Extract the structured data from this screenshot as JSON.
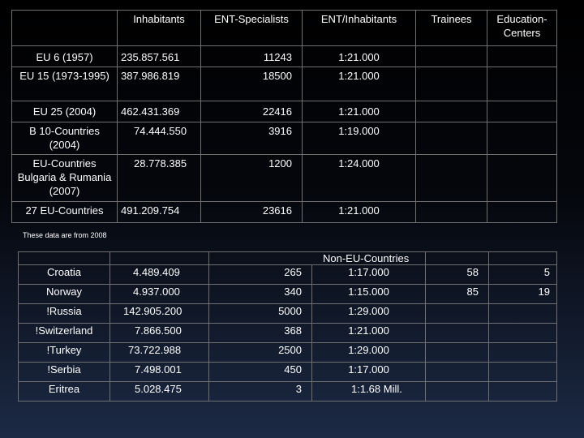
{
  "table1": {
    "headers": [
      "",
      "Inhabitants",
      "ENT-Specialists",
      "ENT/Inhabitants",
      "Trainees",
      "Education-Centers"
    ],
    "rows": [
      {
        "country": "EU 6 (1957)",
        "inhabitants": "235.857.561",
        "ent": "11243",
        "ratio": "1:21.000"
      },
      {
        "country": "EU 15 (1973-1995)",
        "inhabitants": "387.986.819",
        "ent": "18500",
        "ratio": "1:21.000"
      },
      {
        "country": "EU 25 (2004)",
        "inhabitants": "462.431.369",
        "ent": "22416",
        "ratio": "1:21.000"
      },
      {
        "country": "B 10-Countries (2004)",
        "inhabitants": "74.444.550",
        "ent": "3916",
        "ratio": "1:19.000"
      },
      {
        "country": "EU-Countries Bulgaria & Rumania (2007)",
        "inhabitants": "28.778.385",
        "ent": "1200",
        "ratio": "1:24.000"
      },
      {
        "country": "27 EU-Countries",
        "inhabitants": "491.209.754",
        "ent": "23616",
        "ratio": "1:21.000"
      }
    ]
  },
  "note": "These data are from 2008",
  "table2": {
    "section_title": "Non-EU-Countries",
    "rows": [
      {
        "country": "Croatia",
        "inhabitants": "4.489.409",
        "ent": "265",
        "ratio": "1:17.000",
        "trainees": "58",
        "centers": "5"
      },
      {
        "country": "Norway",
        "inhabitants": "4.937.000",
        "ent": "340",
        "ratio": "1:15.000",
        "trainees": "85",
        "centers": "19"
      },
      {
        "country": "!Russia",
        "inhabitants": "142.905.200",
        "ent": "5000",
        "ratio": "1:29.000",
        "trainees": "",
        "centers": ""
      },
      {
        "country": "!Switzerland",
        "inhabitants": "7.866.500",
        "ent": "368",
        "ratio": "1:21.000",
        "trainees": "",
        "centers": ""
      },
      {
        "country": "!Turkey",
        "inhabitants": "73.722.988",
        "ent": "2500",
        "ratio": "1:29.000",
        "trainees": "",
        "centers": ""
      },
      {
        "country": "!Serbia",
        "inhabitants": "7.498.001",
        "ent": "450",
        "ratio": "1:17.000",
        "trainees": "",
        "centers": ""
      },
      {
        "country": "Eritrea",
        "inhabitants": "5.028.475",
        "ent": "3",
        "ratio": "1:1.68 Mill.",
        "trainees": "",
        "centers": ""
      }
    ]
  }
}
